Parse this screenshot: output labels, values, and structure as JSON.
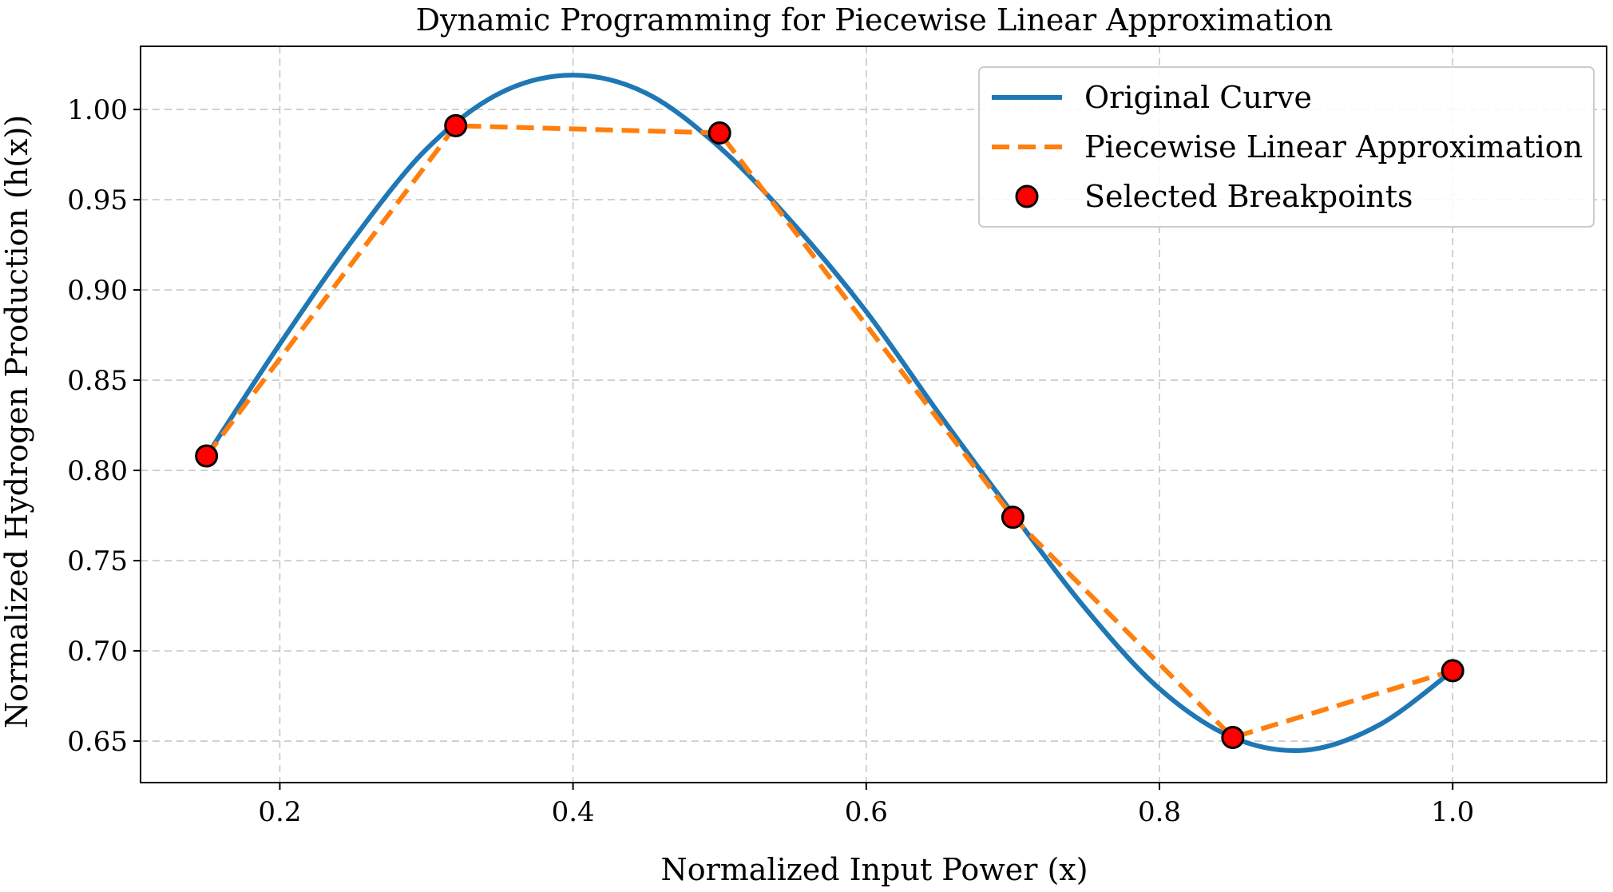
{
  "chart_data": {
    "type": "line",
    "title": "Dynamic Programming for Piecewise Linear Approximation",
    "xlabel": "Normalized Input Power (x)",
    "ylabel": "Normalized Hydrogen Production (h(x))",
    "xlim": [
      0.105,
      1.105
    ],
    "ylim": [
      0.627,
      1.035
    ],
    "xticks": [
      0.2,
      0.4,
      0.6,
      0.8,
      1.0
    ],
    "xtick_labels": [
      "0.2",
      "0.4",
      "0.6",
      "0.8",
      "1.0"
    ],
    "yticks": [
      0.65,
      0.7,
      0.75,
      0.8,
      0.85,
      0.9,
      0.95,
      1.0
    ],
    "ytick_labels": [
      "0.65",
      "0.70",
      "0.75",
      "0.80",
      "0.85",
      "0.90",
      "0.95",
      "1.00"
    ],
    "grid": true,
    "legend_position": "top-right",
    "series": [
      {
        "name": "Original Curve",
        "style": "solid",
        "color": "#1f77b4",
        "x": [
          0.15,
          0.2,
          0.25,
          0.3,
          0.35,
          0.4,
          0.45,
          0.5,
          0.55,
          0.6,
          0.65,
          0.7,
          0.75,
          0.8,
          0.85,
          0.9,
          0.95,
          1.0
        ],
        "y": [
          0.808,
          0.87,
          0.928,
          0.978,
          1.009,
          1.019,
          1.009,
          0.979,
          0.937,
          0.888,
          0.831,
          0.776,
          0.723,
          0.679,
          0.652,
          0.645,
          0.659,
          0.689
        ]
      },
      {
        "name": "Piecewise Linear Approximation",
        "style": "dashed",
        "color": "#ff7f0e",
        "x": [
          0.15,
          0.32,
          0.5,
          0.7,
          0.85,
          1.0
        ],
        "y": [
          0.808,
          0.991,
          0.987,
          0.774,
          0.652,
          0.689
        ]
      },
      {
        "name": "Selected Breakpoints",
        "style": "markers",
        "color": "#ff0000",
        "x": [
          0.15,
          0.32,
          0.5,
          0.7,
          0.85,
          1.0
        ],
        "y": [
          0.808,
          0.991,
          0.987,
          0.774,
          0.652,
          0.689
        ]
      }
    ]
  }
}
